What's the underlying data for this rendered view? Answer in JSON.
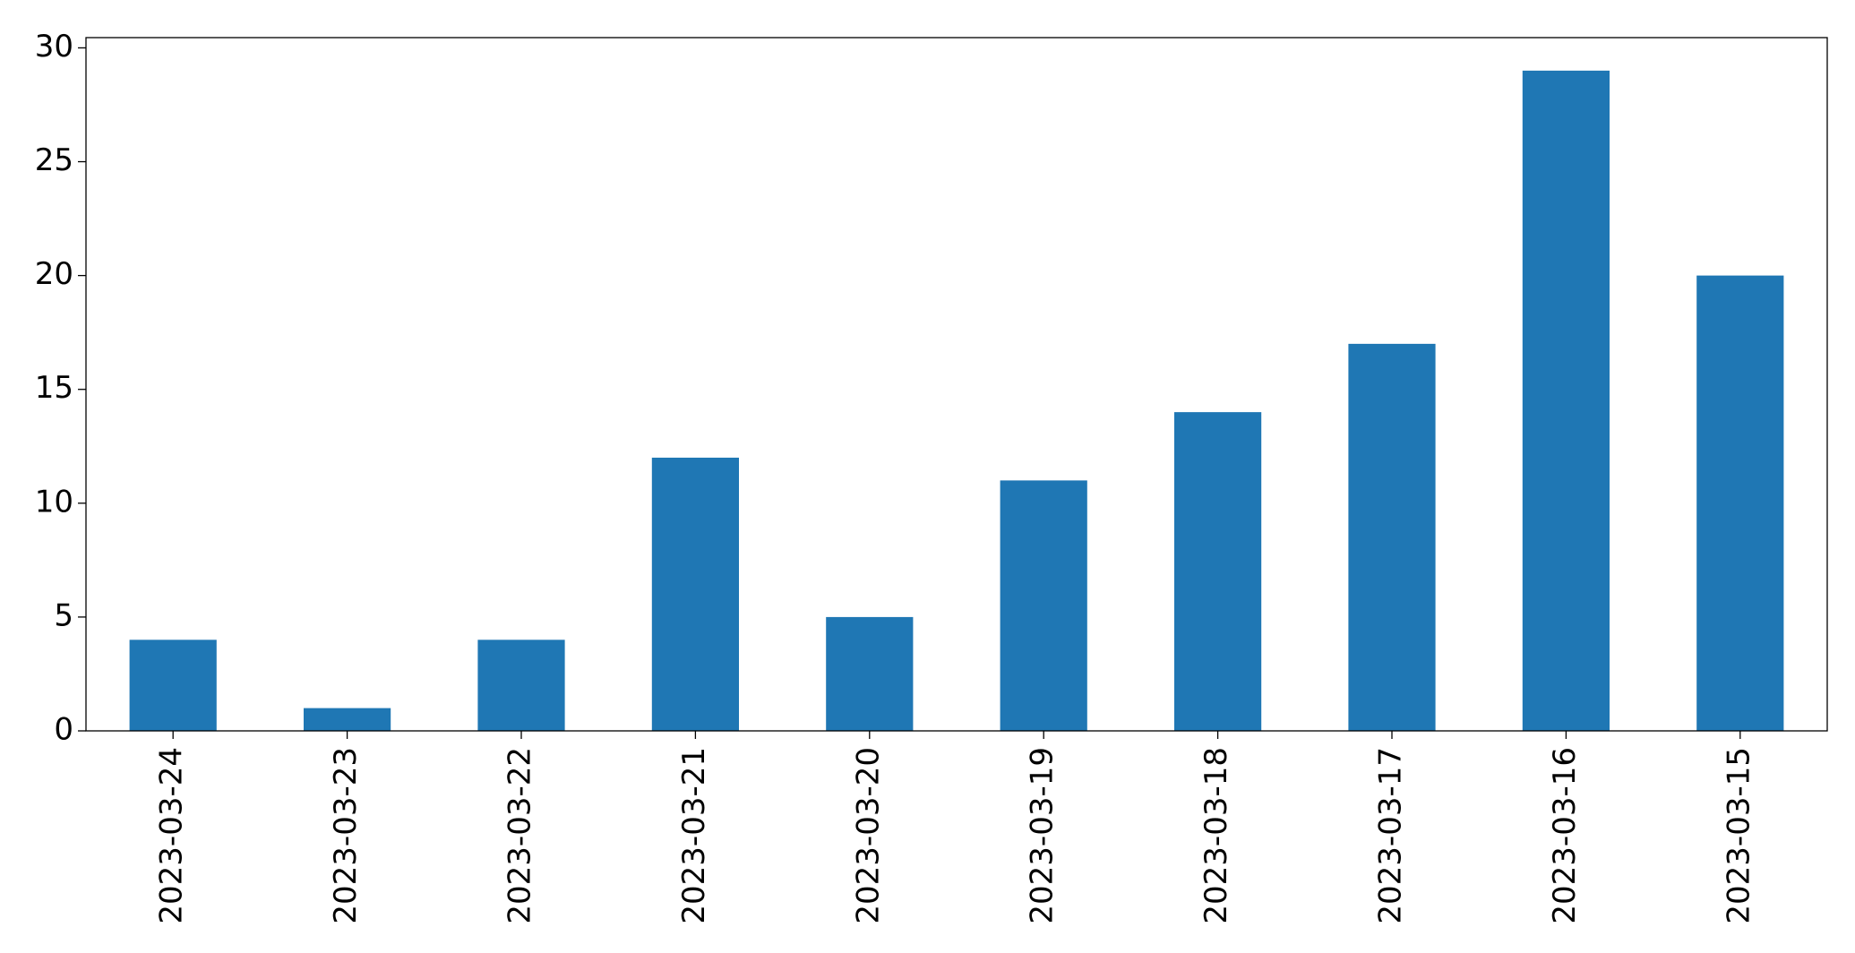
{
  "chart_data": {
    "type": "bar",
    "categories": [
      "2023-03-24",
      "2023-03-23",
      "2023-03-22",
      "2023-03-21",
      "2023-03-20",
      "2023-03-19",
      "2023-03-18",
      "2023-03-17",
      "2023-03-16",
      "2023-03-15"
    ],
    "values": [
      4,
      1,
      4,
      12,
      5,
      11,
      14,
      17,
      29,
      20
    ],
    "color": "#1f77b4",
    "ylim": [
      0,
      30.45
    ],
    "yticks": [
      0,
      5,
      10,
      15,
      20,
      25,
      30
    ],
    "grid": false
  }
}
